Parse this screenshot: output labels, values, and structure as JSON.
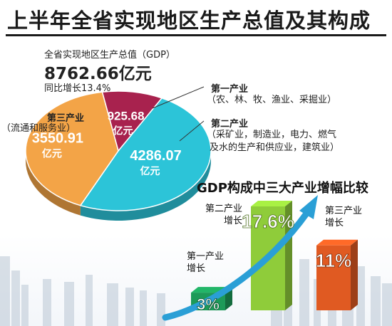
{
  "header": {
    "title": "上半年全省实现地区生产总值及其构成"
  },
  "gdp": {
    "caption": "全省实现地区生产总值（GDP）",
    "total": "8762.66亿元",
    "growth": "同比增长13.4%"
  },
  "colors": {
    "primary": "#a8224e",
    "secondary": "#2cc4d8",
    "tertiary": "#f3a447",
    "bar_primary": "#1d9a58",
    "bar_secondary": "#8fcc3a",
    "bar_tertiary": "#e05a22"
  },
  "chart_data": [
    {
      "type": "pie",
      "slices": [
        {
          "key": "primary",
          "name": "第一产业",
          "description": [
            "（农、林、牧、渔业、采掘业）"
          ],
          "value": 925.68,
          "value_label": "925.68",
          "unit": "亿元"
        },
        {
          "key": "secondary",
          "name": "第二产业",
          "description": [
            "（采矿业，制造业，电力、燃气",
            "及水的生产和供应业，建筑业）"
          ],
          "value": 4286.07,
          "value_label": "4286.07",
          "unit": "亿元"
        },
        {
          "key": "tertiary",
          "name": "第三产业",
          "description": [
            "（流通和服务业）"
          ],
          "value": 3550.91,
          "value_label": "3550.91",
          "unit": "亿元"
        }
      ]
    },
    {
      "type": "bar",
      "title": "GDP构成中三大产业增幅比较",
      "categories": [
        {
          "key": "bar_primary",
          "label": [
            "第一产业",
            "增长"
          ]
        },
        {
          "key": "bar_secondary",
          "label": [
            "第二产业",
            "增长"
          ]
        },
        {
          "key": "bar_tertiary",
          "label": [
            "第三产业",
            "增长"
          ]
        }
      ],
      "values": [
        3,
        17.6,
        11
      ],
      "value_labels": [
        "3%",
        "17.6%",
        "11%"
      ]
    }
  ]
}
